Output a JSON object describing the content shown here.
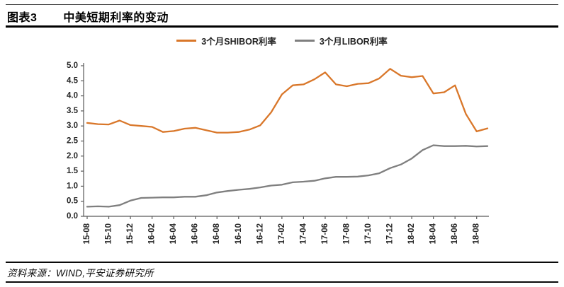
{
  "header": {
    "tag": "图表3",
    "title": "中美短期利率的变动"
  },
  "legend": {
    "items": [
      {
        "label": "3个月SHIBOR利率",
        "color": "#D9772A"
      },
      {
        "label": "3个月LIBOR利率",
        "color": "#7F7F7F"
      }
    ]
  },
  "footer": {
    "source": "资料来源：WIND,平安证券研究所"
  },
  "chart_data": {
    "type": "line",
    "title": "中美短期利率的变动",
    "x": [
      "15-08",
      "15-09",
      "15-10",
      "15-11",
      "15-12",
      "16-01",
      "16-02",
      "16-03",
      "16-04",
      "16-05",
      "16-06",
      "16-07",
      "16-08",
      "16-09",
      "16-10",
      "16-11",
      "16-12",
      "17-01",
      "17-02",
      "17-03",
      "17-04",
      "17-05",
      "17-06",
      "17-07",
      "17-08",
      "17-09",
      "17-10",
      "17-11",
      "17-12",
      "18-01",
      "18-02",
      "18-03",
      "18-04",
      "18-05",
      "18-06",
      "18-07",
      "18-08",
      "18-09"
    ],
    "series": [
      {
        "name": "3个月SHIBOR利率",
        "color": "#D9772A",
        "values": [
          3.1,
          3.06,
          3.05,
          3.18,
          3.03,
          3.0,
          2.97,
          2.8,
          2.83,
          2.91,
          2.94,
          2.86,
          2.78,
          2.78,
          2.8,
          2.88,
          3.02,
          3.45,
          4.05,
          4.35,
          4.38,
          4.55,
          4.78,
          4.38,
          4.32,
          4.4,
          4.42,
          4.58,
          4.9,
          4.67,
          4.62,
          4.66,
          4.08,
          4.12,
          4.35,
          3.4,
          2.82,
          2.92
        ]
      },
      {
        "name": "3个月LIBOR利率",
        "color": "#7F7F7F",
        "values": [
          0.32,
          0.33,
          0.32,
          0.37,
          0.52,
          0.61,
          0.62,
          0.63,
          0.63,
          0.65,
          0.65,
          0.7,
          0.79,
          0.84,
          0.88,
          0.91,
          0.96,
          1.02,
          1.05,
          1.13,
          1.15,
          1.18,
          1.26,
          1.31,
          1.31,
          1.32,
          1.36,
          1.43,
          1.6,
          1.72,
          1.92,
          2.2,
          2.36,
          2.33,
          2.33,
          2.34,
          2.32,
          2.33
        ]
      }
    ],
    "ylim": [
      0,
      5
    ],
    "ytick_step": 0.5,
    "xtick_labels": [
      "15-08",
      "15-10",
      "15-12",
      "16-02",
      "16-04",
      "16-06",
      "16-08",
      "16-10",
      "16-12",
      "17-02",
      "17-04",
      "17-06",
      "17-08",
      "17-10",
      "17-12",
      "18-02",
      "18-04",
      "18-06",
      "18-08"
    ],
    "grid": false,
    "legend_position": "top",
    "axis_color": "#595959",
    "tick_label_color": "#262626"
  }
}
